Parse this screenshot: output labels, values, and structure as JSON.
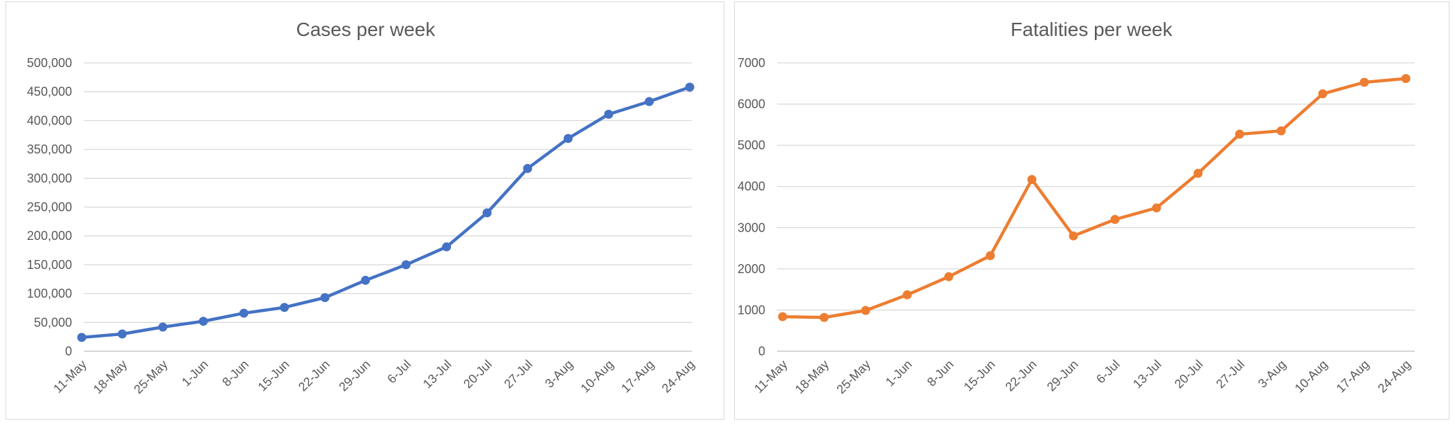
{
  "chart_data": [
    {
      "type": "line",
      "title": "Cases per week",
      "categories": [
        "11-May",
        "18-May",
        "25-May",
        "1-Jun",
        "8-Jun",
        "15-Jun",
        "22-Jun",
        "29-Jun",
        "6-Jul",
        "13-Jul",
        "20-Jul",
        "27-Jul",
        "3-Aug",
        "10-Aug",
        "17-Aug",
        "24-Aug"
      ],
      "series": [
        {
          "values": [
            24000,
            30000,
            42000,
            52000,
            66000,
            76000,
            93000,
            123000,
            150000,
            181000,
            240000,
            317000,
            369000,
            411000,
            433000,
            458000
          ],
          "color": "#4472c4"
        }
      ],
      "yticks": [
        "0",
        "50,000",
        "100,000",
        "150,000",
        "200,000",
        "250,000",
        "300,000",
        "350,000",
        "400,000",
        "450,000",
        "500,000"
      ],
      "ylim": [
        0,
        500000
      ],
      "xlabel": "",
      "ylabel": "",
      "grid": true,
      "legend": "none"
    },
    {
      "type": "line",
      "title": "Fatalities per week",
      "categories": [
        "11-May",
        "18-May",
        "25-May",
        "1-Jun",
        "8-Jun",
        "15-Jun",
        "22-Jun",
        "29-Jun",
        "6-Jul",
        "13-Jul",
        "20-Jul",
        "27-Jul",
        "3-Aug",
        "10-Aug",
        "17-Aug",
        "24-Aug"
      ],
      "series": [
        {
          "values": [
            840,
            820,
            990,
            1370,
            1810,
            2320,
            4170,
            2800,
            3200,
            3480,
            4320,
            5270,
            5350,
            6250,
            6530,
            6620
          ],
          "color": "#ed7d31"
        }
      ],
      "yticks": [
        "0",
        "1000",
        "2000",
        "3000",
        "4000",
        "5000",
        "6000",
        "7000"
      ],
      "ylim": [
        0,
        7000
      ],
      "xlabel": "",
      "ylabel": "",
      "grid": true,
      "legend": "none"
    }
  ]
}
